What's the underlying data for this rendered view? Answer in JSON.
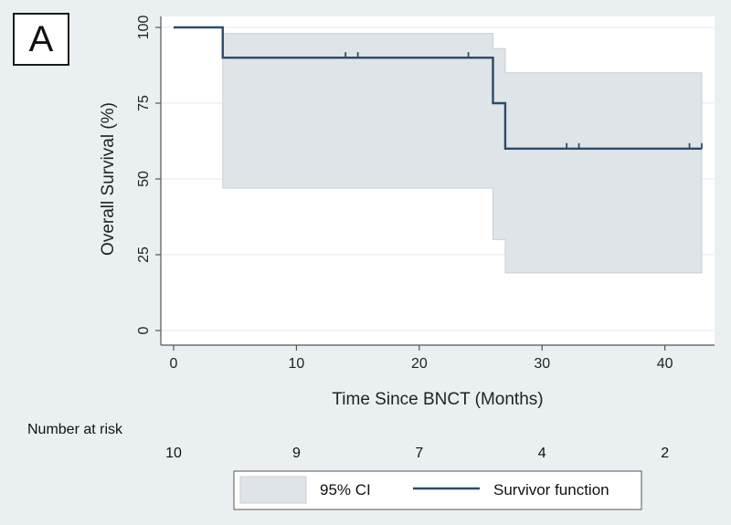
{
  "panel_label": "A",
  "chart_data": {
    "type": "line",
    "subtype": "kaplan-meier",
    "xlabel": "Time Since BNCT (Months)",
    "ylabel": "Overall Survival (%)",
    "xlim": [
      0,
      44
    ],
    "ylim": [
      0,
      100
    ],
    "x_ticks": [
      0,
      10,
      20,
      30,
      40
    ],
    "y_ticks": [
      0,
      25,
      50,
      75,
      100
    ],
    "grid": "horizontal",
    "series": [
      {
        "name": "Survivor function",
        "color": "#2e4a6b",
        "steps": [
          [
            0,
            100
          ],
          [
            4,
            90
          ],
          [
            26,
            75
          ],
          [
            27,
            60
          ],
          [
            43,
            60
          ]
        ],
        "censored_x": [
          14,
          15,
          24,
          32,
          33,
          42,
          43
        ]
      }
    ],
    "ci": {
      "name": "95% CI",
      "color": "#dfe4e8",
      "upper_steps": [
        [
          4,
          98
        ],
        [
          26,
          93
        ],
        [
          27,
          85
        ],
        [
          43,
          85
        ]
      ],
      "lower_steps": [
        [
          4,
          47
        ],
        [
          26,
          30
        ],
        [
          27,
          19
        ],
        [
          43,
          19
        ]
      ]
    },
    "legend": {
      "position": "bottom",
      "entries": [
        "95% CI",
        "Survivor function"
      ]
    }
  },
  "risk_table": {
    "title": "Number at risk",
    "times": [
      0,
      10,
      20,
      30,
      40
    ],
    "counts": [
      "10",
      "9",
      "7",
      "4",
      "2"
    ]
  }
}
